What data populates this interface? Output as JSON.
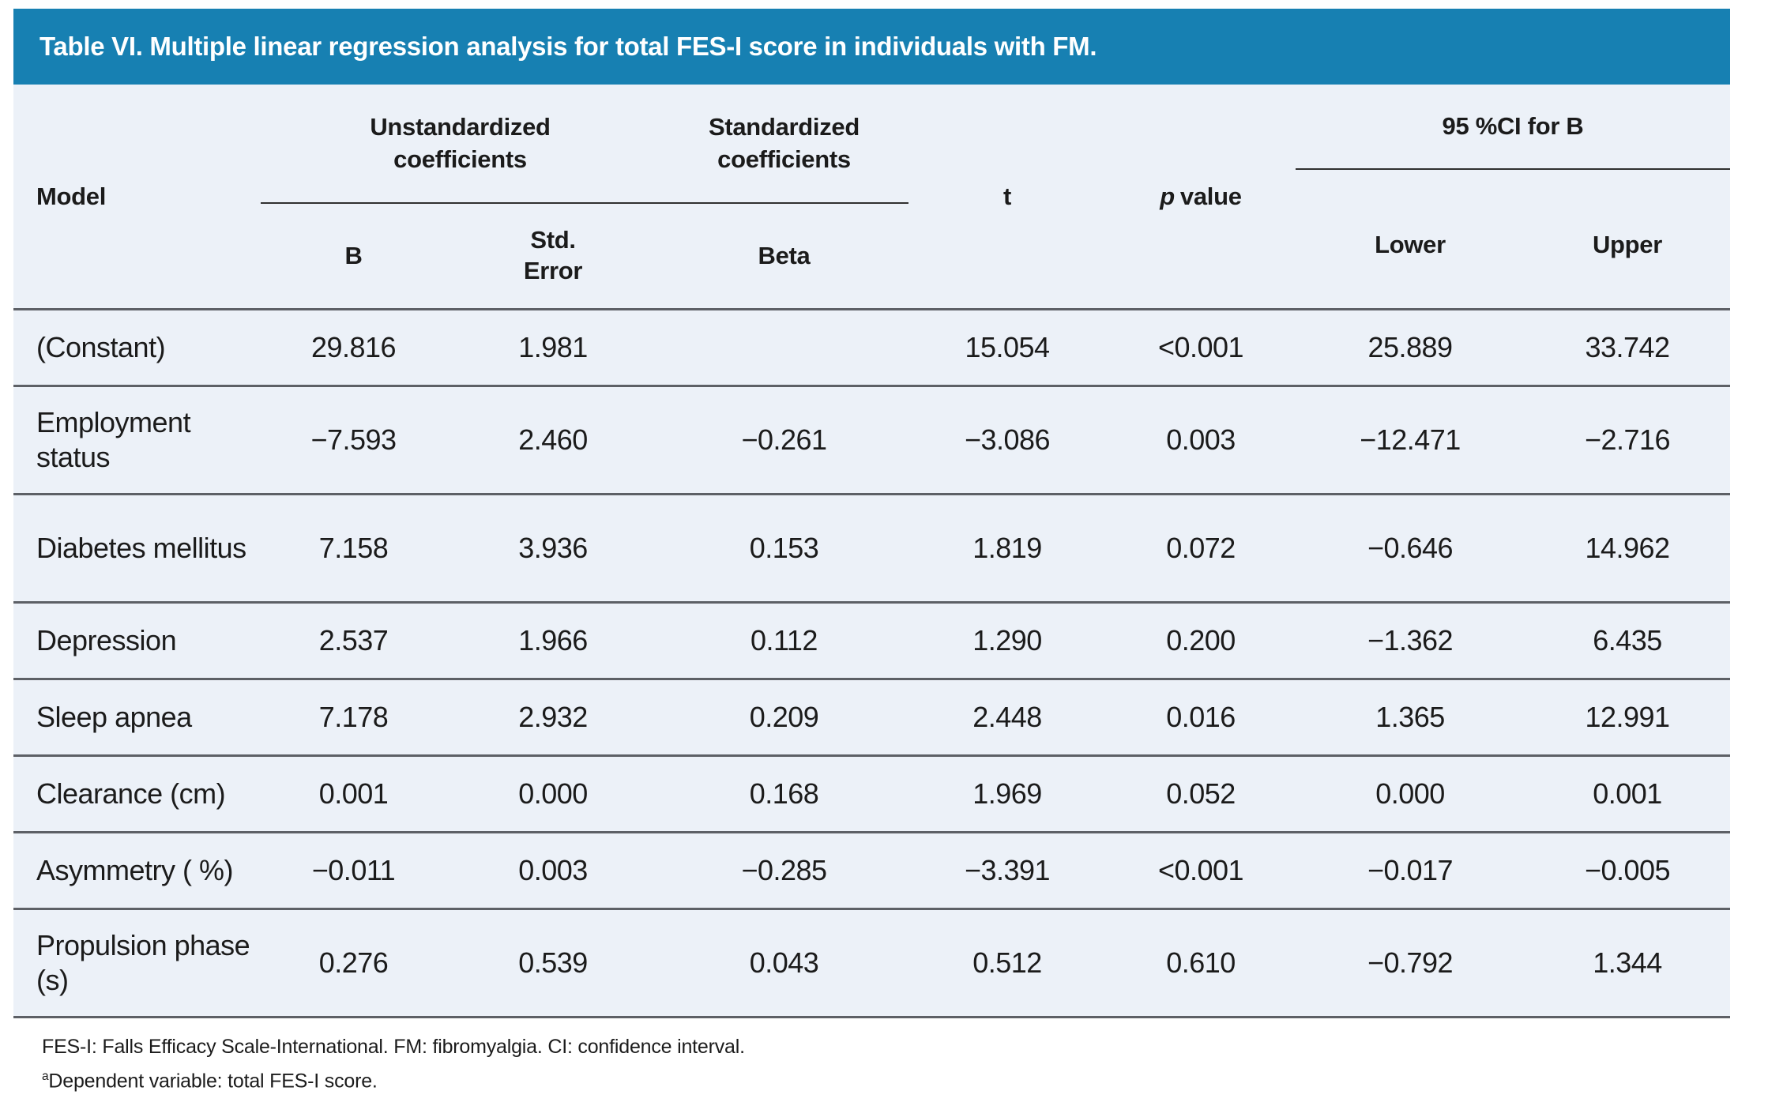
{
  "table": {
    "title": "Table VI. Multiple linear regression analysis for total FES-I score in individuals with FM.",
    "header": {
      "model": "Model",
      "group_unstandardized": "Unstandardized coefficients",
      "group_standardized": "Standardized coefficients",
      "sub_b": "B",
      "sub_std_error": "Std. Error",
      "sub_beta": "Beta",
      "t_label": "t",
      "p_prefix": "p",
      "p_suffix": "value",
      "ci_group": "95 %CI for B",
      "lower": "Lower",
      "upper": "Upper"
    },
    "rows": [
      {
        "label": "(Constant)",
        "b": "29.816",
        "std_error": "1.981",
        "beta": "",
        "t": "15.054",
        "p": "<0.001",
        "lower": "25.889",
        "upper": "33.742"
      },
      {
        "label": "Employment status",
        "b": "−7.593",
        "std_error": "2.460",
        "beta": "−0.261",
        "t": "−3.086",
        "p": "0.003",
        "lower": "−12.471",
        "upper": "−2.716"
      },
      {
        "label": "Diabetes mellitus",
        "b": "7.158",
        "std_error": "3.936",
        "beta": "0.153",
        "t": "1.819",
        "p": "0.072",
        "lower": "−0.646",
        "upper": "14.962"
      },
      {
        "label": "Depression",
        "b": "2.537",
        "std_error": "1.966",
        "beta": "0.112",
        "t": "1.290",
        "p": "0.200",
        "lower": "−1.362",
        "upper": "6.435"
      },
      {
        "label": "Sleep apnea",
        "b": "7.178",
        "std_error": "2.932",
        "beta": "0.209",
        "t": "2.448",
        "p": "0.016",
        "lower": "1.365",
        "upper": "12.991"
      },
      {
        "label": "Clearance (cm)",
        "b": "0.001",
        "std_error": "0.000",
        "beta": "0.168",
        "t": "1.969",
        "p": "0.052",
        "lower": "0.000",
        "upper": "0.001"
      },
      {
        "label": "Asymmetry ( %)",
        "b": "−0.011",
        "std_error": "0.003",
        "beta": "−0.285",
        "t": "−3.391",
        "p": "<0.001",
        "lower": "−0.017",
        "upper": "−0.005"
      },
      {
        "label": "Propulsion phase (s)",
        "b": "0.276",
        "std_error": "0.539",
        "beta": "0.043",
        "t": "0.512",
        "p": "0.610",
        "lower": "−0.792",
        "upper": "1.344"
      }
    ]
  },
  "footnotes": {
    "abbreviations": "FES-I: Falls Efficacy Scale-International. FM: fibromyalgia. CI: confidence interval.",
    "dependent_sup": "a",
    "dependent_text": "Dependent variable: total FES-I score."
  },
  "colors": {
    "title_bar_bg": "#1780b2",
    "title_text": "#ffffff",
    "table_bg": "#ecf1f8",
    "row_separator": "#5d6066",
    "header_rule": "#303030",
    "body_text": "#1b1b1b"
  }
}
